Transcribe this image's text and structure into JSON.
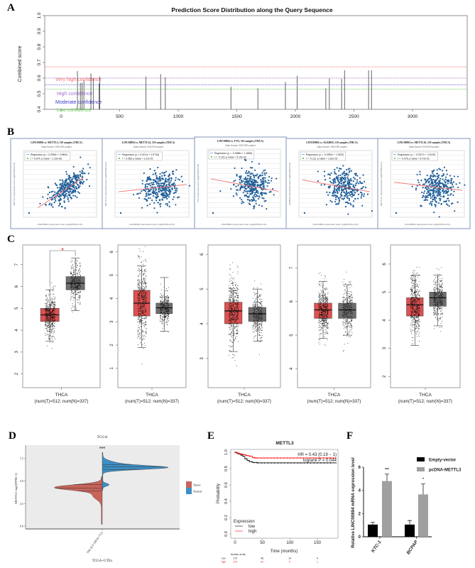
{
  "panel_labels": {
    "a": "A",
    "b": "B",
    "c": "C",
    "d": "D",
    "e": "E",
    "f": "F"
  },
  "colors": {
    "very_high": "#ff6666",
    "high": "#a070d0",
    "moderate": "#4040d0",
    "low": "#66cc55",
    "tumor": "#e05050",
    "normal": "#6e6e6e",
    "violin_tumor": "#c8645a",
    "violin_normal": "#3d8fc4",
    "scatter": "#1f5f99",
    "regression": "#f07070",
    "km_low": "#000000",
    "km_high": "#ff0000",
    "bar_empty": "#000000",
    "bar_pcdna": "#a0a0a0"
  },
  "chart_data": [
    {
      "id": "A",
      "type": "bar",
      "title": "Prediction Score Distribution along the Query Sequence",
      "xlabel": "",
      "ylabel": "Combined score",
      "xlim": [
        -80,
        3400
      ],
      "ylim": [
        0.4,
        1.0
      ],
      "xticks": [
        "0",
        "500",
        "1000",
        "1500",
        "2000",
        "2500",
        "3000"
      ],
      "yticks": [
        "0.4",
        "0.5",
        "0.6",
        "0.7",
        "0.8",
        "0.9",
        "1.0"
      ],
      "thresholds": [
        {
          "label": "Very high confidence",
          "value": 0.672,
          "color": "very_high"
        },
        {
          "label": "High confidence",
          "value": 0.6,
          "color": "high"
        },
        {
          "label": "Moderate confidence",
          "value": 0.557,
          "color": "moderate"
        },
        {
          "label": "Low confidence",
          "value": 0.53,
          "color": "low"
        }
      ],
      "x": [
        140,
        165,
        180,
        195,
        255,
        275,
        325,
        330,
        725,
        850,
        890,
        1450,
        1680,
        1915,
        2015,
        2260,
        2290,
        2395,
        2420,
        2625,
        2650
      ],
      "values": [
        0.645,
        0.57,
        0.57,
        0.585,
        0.63,
        0.6,
        0.565,
        0.61,
        0.61,
        0.625,
        0.605,
        0.545,
        0.535,
        0.575,
        0.615,
        0.535,
        0.6,
        0.595,
        0.65,
        0.65,
        0.65
      ]
    },
    {
      "id": "B",
      "type": "scatter",
      "panels": [
        {
          "title": "LINC00894 vs. METTL3, 510 samples (THCA)",
          "source": "Data Source: ENCORI project",
          "regression": "Regression (y = 0.2008x + 2.9800)",
          "stat": "r = 0.674, p-value = 1.10e-68",
          "r": 0.674,
          "xlabel": "LINC00894, Expression level: log2(FPKM+0.01)",
          "ylabel": "METTL3, Expression level: log2(FPKM+0.01)"
        },
        {
          "title": "LINC00894 vs. METTL14, 510 samples (THCA)",
          "source": "Data Source: ENCORI project",
          "regression": "Regression (y = 0.0211x + 2.9746)",
          "stat": "r = 0.068, p-value = 1.21e-01",
          "r": 0.068,
          "xlabel": "LINC00894, Expression level: log2(FPKM+0.01)",
          "ylabel": "METTL14, Expression level: log2(FPKM+0.01)"
        },
        {
          "title": "LINC00894 vs. FTO, 510 samples (THCA)",
          "source": "Data Source: ENCORI project",
          "regression": "Regression (y = -0.0688x + 1.4883)",
          "stat": "r = -0.115, p-value = 9.10e-03",
          "r": -0.115,
          "xlabel": "LINC00894, Expression level: log2(FPKM+0.01)",
          "ylabel": "FTO, Expression level: log2(FPKM+0.01)"
        },
        {
          "title": "LINC00894 vs. ALKBH5, 510 samples (THCA)",
          "source": "Data Source: ENCORI project",
          "regression": "Regression (y = -0.0390x + 1.0532)",
          "stat": "r = -0.111, p-value = 1.61e-02",
          "r": -0.111,
          "xlabel": "LINC00894, Expression level: log2(FPKM+0.01)",
          "ylabel": "ALKBH5, Expression level: log2(FPKM+0.01)"
        },
        {
          "title": "LINC00894 vs. METTL16, 510 samples (THCA)",
          "source": "Data Source: ENCORI project",
          "regression": "Regression (y = -0.0227x + 2.5133)",
          "stat": "r = -0.076, p-value = 8.72e-02",
          "r": -0.076,
          "xlabel": "LINC00894, Expression level: log2(FPKM+0.01)",
          "ylabel": "METTL16, Expression level: log2(FPKM+0.01)"
        }
      ]
    },
    {
      "id": "C",
      "type": "box",
      "xlabel": "THCA",
      "sublabel": "(num(T)=512; num(N)=337)",
      "n_tumor": 512,
      "n_normal": 337,
      "panels": [
        {
          "ylim": [
            1.37,
            7.9
          ],
          "yticks": [
            2,
            3,
            4,
            5,
            6,
            7
          ],
          "sig": "*",
          "tumor": {
            "q1": 4.4,
            "med": 4.7,
            "q3": 5.0,
            "lo": 3.5,
            "hi": 5.85
          },
          "normal": {
            "q1": 5.85,
            "med": 6.15,
            "q3": 6.45,
            "lo": 4.9,
            "hi": 7.3
          }
        },
        {
          "ylim": [
            0.17,
            6.3
          ],
          "yticks": [
            1,
            2,
            3,
            4,
            5,
            6
          ],
          "sig": "",
          "tumor": {
            "q1": 3.25,
            "med": 3.8,
            "q3": 4.35,
            "lo": 1.9,
            "hi": 5.4
          },
          "normal": {
            "q1": 3.35,
            "med": 3.6,
            "q3": 3.8,
            "lo": 2.6,
            "hi": 4.9
          }
        },
        {
          "ylim": [
            2.16,
            6.27
          ],
          "yticks": [
            3,
            4,
            5,
            6
          ],
          "sig": "",
          "tumor": {
            "q1": 4.0,
            "med": 4.37,
            "q3": 4.62,
            "lo": 3.2,
            "hi": 4.95
          },
          "normal": {
            "q1": 4.07,
            "med": 4.29,
            "q3": 4.47,
            "lo": 3.5,
            "hi": 5.0
          }
        },
        {
          "ylim": [
            3.44,
            7.68
          ],
          "yticks": [
            4,
            5,
            6,
            7
          ],
          "sig": "",
          "tumor": {
            "q1": 5.5,
            "med": 5.75,
            "q3": 5.95,
            "lo": 4.9,
            "hi": 6.6
          },
          "normal": {
            "q1": 5.5,
            "med": 5.75,
            "q3": 5.95,
            "lo": 5.0,
            "hi": 6.5
          }
        },
        {
          "ylim": [
            1.6,
            6.68
          ],
          "yticks": [
            2,
            3,
            4,
            5,
            6
          ],
          "sig": "",
          "tumor": {
            "q1": 4.15,
            "med": 4.55,
            "q3": 4.8,
            "lo": 3.1,
            "hi": 5.6
          },
          "normal": {
            "q1": 4.5,
            "med": 4.8,
            "q3": 5.0,
            "lo": 3.8,
            "hi": 5.6
          }
        }
      ]
    },
    {
      "id": "D",
      "type": "violin",
      "title": "TCGA",
      "ylabel": "METTL3  log2(TPM+1)",
      "xlabel": "TCGA+GTEx",
      "category": "THCA(T=509;N=712)",
      "ylim": [
        -0.2,
        9.3
      ],
      "yticks": [
        "0.0",
        "2.5",
        "5.0",
        "7.5"
      ],
      "sig": "***",
      "legend": [
        "Tumor",
        "Normal"
      ],
      "tumor_quartiles": [
        3.9,
        4.24,
        4.6
      ],
      "normal_quartiles": [
        6.3,
        6.6,
        6.85
      ]
    },
    {
      "id": "E",
      "type": "line",
      "title": "METTL3",
      "xlabel": "Time (months)",
      "ylabel": "Probability",
      "xlim": [
        -5,
        185
      ],
      "ylim": [
        0,
        1.0
      ],
      "xticks": [
        "0",
        "50",
        "100",
        "150"
      ],
      "yticks": [
        "0.0",
        "0.2",
        "0.4",
        "0.6",
        "0.8",
        "1.0"
      ],
      "hr": "HR = 0.43 (0.19 − 1)",
      "logrank": "logrank P = 0.044",
      "legend_title": "Expression",
      "series": [
        {
          "name": "low",
          "points": [
            [
              0,
              1
            ],
            [
              3,
              0.99
            ],
            [
              6,
              0.98
            ],
            [
              10,
              0.965
            ],
            [
              14,
              0.95
            ],
            [
              18,
              0.92
            ],
            [
              22,
              0.9
            ],
            [
              26,
              0.885
            ],
            [
              32,
              0.875
            ],
            [
              40,
              0.87
            ],
            [
              185,
              0.87
            ]
          ]
        },
        {
          "name": "high",
          "points": [
            [
              0,
              1
            ],
            [
              4,
              0.99
            ],
            [
              8,
              0.98
            ],
            [
              14,
              0.97
            ],
            [
              20,
              0.96
            ],
            [
              26,
              0.95
            ],
            [
              32,
              0.935
            ],
            [
              36,
              0.93
            ],
            [
              185,
              0.93
            ]
          ]
        }
      ],
      "risk_table": {
        "title": "Number at risk",
        "rows": [
          {
            "label": "low",
            "values": [
              "179",
              "48",
              "14",
              "4"
            ]
          },
          {
            "label": "high",
            "values": [
              "174",
              "42",
              "9",
              "1"
            ]
          }
        ]
      }
    },
    {
      "id": "F",
      "type": "bar",
      "ylabel": "Relative LINC00894 mRNA expression  level",
      "categories": [
        "KTC-1",
        "BCPAP"
      ],
      "ylim": [
        0,
        6
      ],
      "yticks": [
        "0",
        "2",
        "4",
        "6"
      ],
      "series": [
        {
          "name": "Empty-vector",
          "values": [
            1.05,
            1.05
          ],
          "errors": [
            0.2,
            0.35
          ],
          "sig": [
            "",
            ""
          ]
        },
        {
          "name": "pcDNA-METTL3",
          "values": [
            4.8,
            3.65
          ],
          "errors": [
            0.6,
            0.9
          ],
          "sig": [
            "***",
            "*"
          ]
        }
      ]
    }
  ]
}
